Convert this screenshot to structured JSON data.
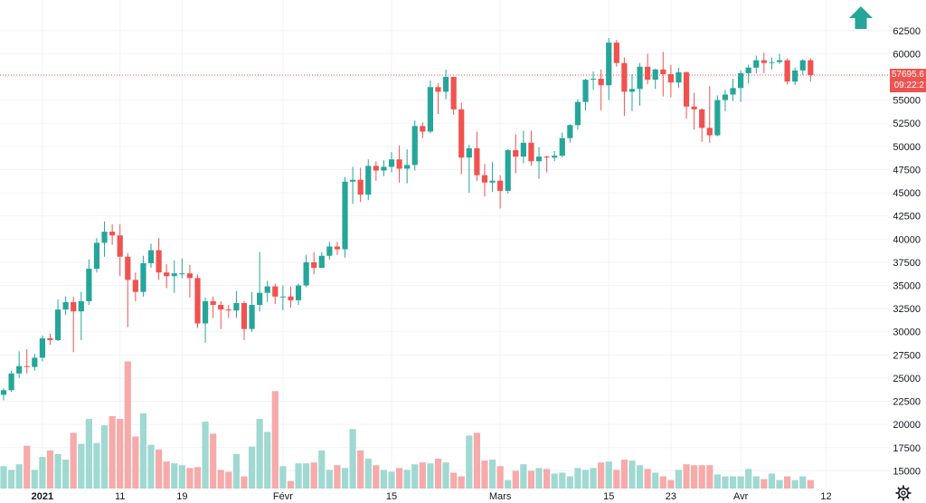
{
  "chart_data": {
    "type": "candlestick",
    "title": "",
    "xlabel": "",
    "ylabel": "",
    "ylim": [
      12500,
      63750
    ],
    "y_ticks": [
      "62500",
      "60000",
      "57500",
      "55000",
      "52500",
      "50000",
      "47500",
      "45000",
      "42500",
      "40000",
      "37500",
      "35000",
      "32500",
      "30000",
      "27500",
      "25000",
      "22500",
      "20000",
      "17500",
      "15000"
    ],
    "x_tick_labels": [
      {
        "day": 5,
        "label": "2021",
        "bold": true
      },
      {
        "day": 15,
        "label": "11"
      },
      {
        "day": 23,
        "label": "19"
      },
      {
        "day": 36,
        "label": "Févr"
      },
      {
        "day": 50,
        "label": "15"
      },
      {
        "day": 64,
        "label": "Mars"
      },
      {
        "day": 78,
        "label": "15"
      },
      {
        "day": 86,
        "label": "23"
      },
      {
        "day": 95,
        "label": "Avr"
      },
      {
        "day": 106,
        "label": "12"
      }
    ],
    "candles": [
      [
        23200,
        23700,
        22600,
        23900
      ],
      [
        23700,
        25500,
        23500,
        25800
      ],
      [
        25500,
        26300,
        25000,
        27900
      ],
      [
        26300,
        26200,
        25500,
        28100
      ],
      [
        26200,
        27200,
        25800,
        27600
      ],
      [
        27200,
        29300,
        26800,
        29600
      ],
      [
        29300,
        29100,
        28600,
        29800
      ],
      [
        29100,
        32400,
        29000,
        33500
      ],
      [
        32400,
        33200,
        31800,
        33800
      ],
      [
        33200,
        32200,
        27800,
        33800
      ],
      [
        32200,
        33300,
        29100,
        34300
      ],
      [
        33300,
        36800,
        32900,
        37800
      ],
      [
        36800,
        39600,
        36400,
        40100
      ],
      [
        39600,
        40800,
        38100,
        41900
      ],
      [
        40800,
        40400,
        39400,
        41600
      ],
      [
        40400,
        38100,
        36000,
        41600
      ],
      [
        38100,
        35600,
        30500,
        38500
      ],
      [
        35600,
        34300,
        33300,
        36400
      ],
      [
        34300,
        37400,
        33800,
        38200
      ],
      [
        37400,
        38800,
        36900,
        39500
      ],
      [
        38800,
        36400,
        35600,
        40100
      ],
      [
        36400,
        36000,
        34700,
        37300
      ],
      [
        36000,
        36300,
        34200,
        37700
      ],
      [
        36300,
        36300,
        35800,
        37900
      ],
      [
        36300,
        35800,
        33700,
        37200
      ],
      [
        35800,
        30900,
        30400,
        36200
      ],
      [
        30900,
        33300,
        28800,
        33700
      ],
      [
        33300,
        32900,
        31500,
        33800
      ],
      [
        32900,
        32400,
        30300,
        33300
      ],
      [
        32400,
        32300,
        31500,
        32900
      ],
      [
        32300,
        33100,
        31500,
        34400
      ],
      [
        33100,
        30300,
        29100,
        33300
      ],
      [
        30300,
        32900,
        30000,
        34300
      ],
      [
        32900,
        34200,
        32200,
        38600
      ],
      [
        34200,
        34900,
        33200,
        35500
      ],
      [
        34900,
        33800,
        33000,
        35200
      ],
      [
        33800,
        33800,
        32300,
        35000
      ],
      [
        33800,
        33400,
        32600,
        34900
      ],
      [
        33400,
        35000,
        32900,
        35200
      ],
      [
        35000,
        37500,
        34800,
        38300
      ],
      [
        37500,
        36900,
        36200,
        38600
      ],
      [
        36900,
        38200,
        36900,
        38600
      ],
      [
        38200,
        39200,
        37800,
        39700
      ],
      [
        39200,
        38900,
        38300,
        39700
      ],
      [
        38900,
        46200,
        38000,
        46700
      ],
      [
        46200,
        46400,
        43800,
        47800
      ],
      [
        46400,
        44800,
        44000,
        47700
      ],
      [
        44800,
        47900,
        44200,
        48600
      ],
      [
        47900,
        47400,
        46300,
        48400
      ],
      [
        47400,
        47800,
        46800,
        48500
      ],
      [
        47800,
        48600,
        47200,
        49400
      ],
      [
        48600,
        47600,
        46100,
        50100
      ],
      [
        47600,
        48000,
        46000,
        49700
      ],
      [
        48000,
        52200,
        47400,
        52800
      ],
      [
        52200,
        51600,
        50900,
        52600
      ],
      [
        51600,
        56400,
        51400,
        57100
      ],
      [
        56400,
        55900,
        53500,
        56800
      ],
      [
        55900,
        57500,
        55100,
        58300
      ],
      [
        57500,
        54000,
        53400,
        57500
      ],
      [
        54000,
        48800,
        47000,
        54700
      ],
      [
        48800,
        49800,
        45000,
        50200
      ],
      [
        49800,
        46900,
        46300,
        51600
      ],
      [
        46900,
        46100,
        44600,
        48100
      ],
      [
        46100,
        46300,
        45100,
        48300
      ],
      [
        46300,
        45200,
        43300,
        46900
      ],
      [
        45200,
        49600,
        44900,
        49700
      ],
      [
        49600,
        48900,
        47100,
        51300
      ],
      [
        48900,
        50400,
        48200,
        51700
      ],
      [
        50400,
        48400,
        47900,
        51700
      ],
      [
        48400,
        48900,
        46500,
        49900
      ],
      [
        48900,
        48800,
        47200,
        49000
      ],
      [
        48800,
        49000,
        48400,
        49500
      ],
      [
        49000,
        50900,
        48800,
        51500
      ],
      [
        50900,
        52300,
        50400,
        52400
      ],
      [
        52300,
        54800,
        51800,
        55100
      ],
      [
        54800,
        57200,
        53900,
        57300
      ],
      [
        57200,
        57300,
        56100,
        58100
      ],
      [
        57300,
        56600,
        53900,
        58300
      ],
      [
        56600,
        61200,
        55000,
        61700
      ],
      [
        61200,
        59000,
        58600,
        61500
      ],
      [
        59000,
        55900,
        53300,
        59600
      ],
      [
        55900,
        56200,
        53800,
        57800
      ],
      [
        56200,
        58600,
        54400,
        59000
      ],
      [
        58600,
        57200,
        56700,
        60000
      ],
      [
        57200,
        58300,
        56200,
        58400
      ],
      [
        58300,
        57800,
        55400,
        60200
      ],
      [
        57800,
        56900,
        55300,
        58800
      ],
      [
        56900,
        58000,
        56300,
        58500
      ],
      [
        58000,
        54300,
        53000,
        58100
      ],
      [
        54300,
        54000,
        51800,
        55800
      ],
      [
        54000,
        52000,
        50500,
        54100
      ],
      [
        52000,
        51200,
        50400,
        56500
      ],
      [
        51200,
        55000,
        51100,
        55500
      ],
      [
        55000,
        55600,
        53800,
        56100
      ],
      [
        55600,
        56300,
        54900,
        57300
      ],
      [
        56300,
        57900,
        54800,
        58200
      ],
      [
        57900,
        58500,
        56800,
        58800
      ],
      [
        58500,
        59300,
        57900,
        59800
      ],
      [
        59300,
        59000,
        57900,
        60100
      ],
      [
        59000,
        59100,
        58300,
        59600
      ],
      [
        59100,
        59300,
        58900,
        60000
      ],
      [
        59300,
        57000,
        56700,
        59500
      ],
      [
        57000,
        58200,
        56600,
        58500
      ],
      [
        58200,
        59300,
        57700,
        59400
      ],
      [
        59300,
        57700,
        57000,
        59500
      ]
    ],
    "volumes": [
      15500,
      15100,
      15700,
      17700,
      15100,
      16500,
      17200,
      16800,
      16200,
      19100,
      17900,
      20600,
      18000,
      19900,
      20900,
      20600,
      26800,
      18700,
      21200,
      17800,
      17300,
      16000,
      15800,
      15600,
      15300,
      15400,
      20300,
      19000,
      15100,
      14900,
      16800,
      14400,
      17600,
      20600,
      19200,
      23600,
      15500,
      13900,
      15800,
      15800,
      15900,
      17200,
      15100,
      15600,
      15300,
      19500,
      17200,
      16300,
      15600,
      15100,
      14900,
      15300,
      15100,
      15700,
      15900,
      15800,
      16300,
      15900,
      14800,
      14400,
      18800,
      19100,
      16100,
      16200,
      15500,
      14000,
      15000,
      15700,
      15000,
      15300,
      15200,
      14700,
      14800,
      14400,
      15300,
      15100,
      15300,
      15900,
      16000,
      15100,
      16200,
      16100,
      15600,
      15200,
      14800,
      14400,
      14000,
      15100,
      15700,
      15600,
      15600,
      15600,
      14600,
      14400,
      14400,
      14400,
      15200,
      14400,
      14100,
      14700,
      14000,
      14400,
      14000,
      14400,
      14000
    ],
    "current_price": {
      "value": "57695.6",
      "countdown": "09:22:2",
      "price": 57695.6
    },
    "colors": {
      "up": "#26a69a",
      "down": "#ef5350",
      "up_volume": "#9fd9d1",
      "down_volume": "#f6aaaa",
      "grid": "#f0f3fa",
      "axis_text": "#131722",
      "price_line": "#ef5350",
      "arrow": "#26a69a"
    }
  },
  "ui": {
    "scroll_arrow_icon": "up-arrow-icon",
    "settings_icon": "gear-icon"
  }
}
